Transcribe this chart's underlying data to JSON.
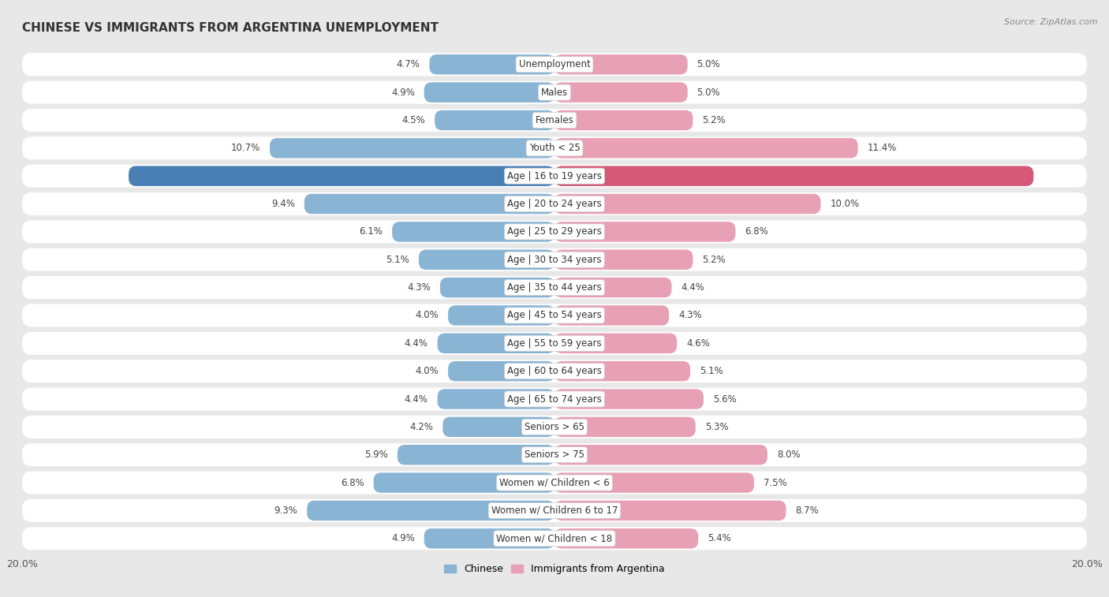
{
  "title": "CHINESE VS IMMIGRANTS FROM ARGENTINA UNEMPLOYMENT",
  "source": "Source: ZipAtlas.com",
  "categories": [
    "Unemployment",
    "Males",
    "Females",
    "Youth < 25",
    "Age | 16 to 19 years",
    "Age | 20 to 24 years",
    "Age | 25 to 29 years",
    "Age | 30 to 34 years",
    "Age | 35 to 44 years",
    "Age | 45 to 54 years",
    "Age | 55 to 59 years",
    "Age | 60 to 64 years",
    "Age | 65 to 74 years",
    "Seniors > 65",
    "Seniors > 75",
    "Women w/ Children < 6",
    "Women w/ Children 6 to 17",
    "Women w/ Children < 18"
  ],
  "chinese": [
    4.7,
    4.9,
    4.5,
    10.7,
    16.0,
    9.4,
    6.1,
    5.1,
    4.3,
    4.0,
    4.4,
    4.0,
    4.4,
    4.2,
    5.9,
    6.8,
    9.3,
    4.9
  ],
  "argentina": [
    5.0,
    5.0,
    5.2,
    11.4,
    18.0,
    10.0,
    6.8,
    5.2,
    4.4,
    4.3,
    4.6,
    5.1,
    5.6,
    5.3,
    8.0,
    7.5,
    8.7,
    5.4
  ],
  "chinese_color": "#8ab4d4",
  "argentina_color": "#e8a0b4",
  "highlight_chinese_color": "#4a7fb5",
  "highlight_argentina_color": "#d45878",
  "highlight_index": 4,
  "max_value": 20.0,
  "bg_color": "#e8e8e8",
  "row_bg_color": "#f0f0f0",
  "row_alt_bg_color": "#e0e0e0",
  "legend_chinese": "Chinese",
  "legend_argentina": "Immigrants from Argentina"
}
